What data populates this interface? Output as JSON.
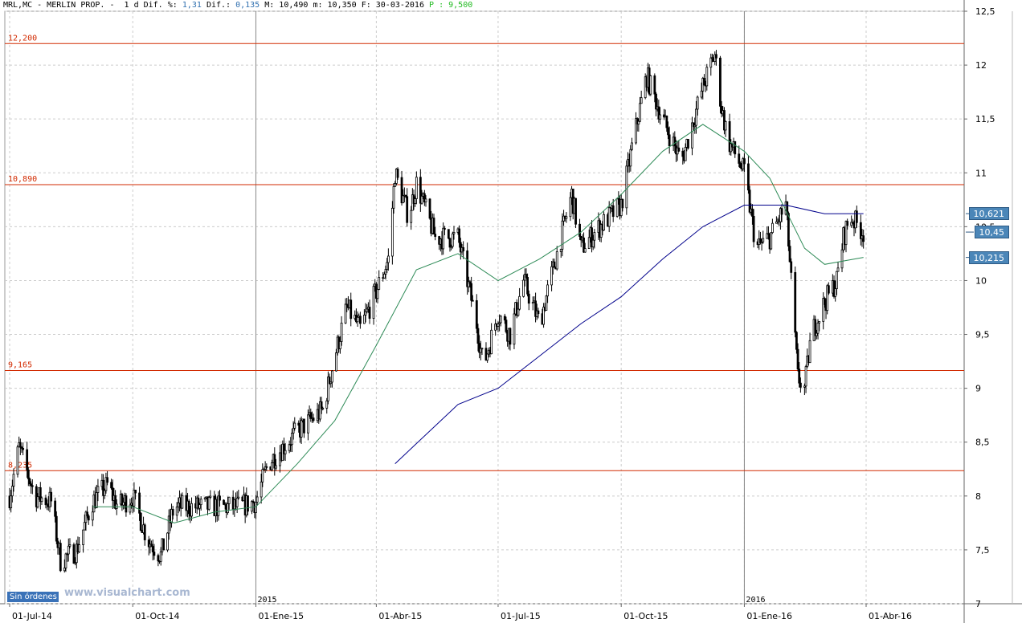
{
  "header": {
    "symbol": "MRL,MC - MERLIN PROP. -",
    "timeframe": "1 d",
    "dif_pct_label": "Dif. %:",
    "dif_pct_value": "1,31",
    "dif_label": "Dif.:",
    "dif_value": "0,135",
    "max_label": "M:",
    "max_value": "10,490",
    "min_label": "m:",
    "min_value": "10,350",
    "date_label": "F:",
    "date_value": "30-03-2016",
    "p_label": "P",
    "p_value": "9,500"
  },
  "badge": {
    "label": "Sin órdenes"
  },
  "watermark": "www.visualchart.com",
  "colors": {
    "candles": "#000000",
    "level_lines": "#d22a00",
    "ma_short": "#2e8b57",
    "ma_long": "#00008b",
    "grid": "#cccccc",
    "tag": "#4b86b8"
  },
  "chart_data": {
    "type": "line",
    "series_type": "candlestick",
    "ylim": [
      7,
      12.5
    ],
    "y_ticks": [
      "7",
      "7,5",
      "8",
      "8,5",
      "9",
      "9,5",
      "10",
      "10,5",
      "11",
      "11,5",
      "12",
      "12,5"
    ],
    "x_ticks": [
      "01-Jul-14",
      "01-Oct-14",
      "01-Ene-15",
      "01-Abr-15",
      "01-Jul-15",
      "01-Oct-15",
      "01-Ene-16",
      "01-Abr-16"
    ],
    "year_labels": [
      "2015",
      "2016"
    ],
    "level_lines": [
      {
        "label": "12,200",
        "value": 12.2
      },
      {
        "label": "10,890",
        "value": 10.89
      },
      {
        "label": "9,165",
        "value": 9.165
      },
      {
        "label": "8,235",
        "value": 8.235
      }
    ],
    "price_tags": [
      {
        "label": "10,621",
        "value": 10.621
      },
      {
        "label": "10,45",
        "value": 10.45
      },
      {
        "label": "10,215",
        "value": 10.215
      }
    ],
    "price_path": [
      [
        "01-Jul-14",
        8.0
      ],
      [
        "08-Jul-14",
        8.45
      ],
      [
        "20-Jul-14",
        8.0
      ],
      [
        "01-Aug-14",
        7.95
      ],
      [
        "08-Aug-14",
        7.4
      ],
      [
        "20-Aug-14",
        7.5
      ],
      [
        "01-Sep-14",
        7.95
      ],
      [
        "12-Sep-14",
        8.1
      ],
      [
        "20-Sep-14",
        7.9
      ],
      [
        "01-Oct-14",
        8.0
      ],
      [
        "12-Oct-14",
        7.6
      ],
      [
        "22-Oct-14",
        7.45
      ],
      [
        "01-Nov-14",
        7.9
      ],
      [
        "01-Dec-14",
        7.9
      ],
      [
        "20-Dec-14",
        7.9
      ],
      [
        "01-Ene-15",
        7.95
      ],
      [
        "10-Ene-15",
        8.3
      ],
      [
        "01-Feb-15",
        8.6
      ],
      [
        "20-Feb-15",
        8.8
      ],
      [
        "01-Mar-15",
        9.3
      ],
      [
        "10-Mar-15",
        9.75
      ],
      [
        "20-Mar-15",
        9.55
      ],
      [
        "01-Abr-15",
        9.9
      ],
      [
        "10-Abr-15",
        10.2
      ],
      [
        "15-Abr-15",
        11.0
      ],
      [
        "25-Abr-15",
        10.6
      ],
      [
        "01-May-15",
        10.9
      ],
      [
        "15-May-15",
        10.4
      ],
      [
        "01-Jun-15",
        10.4
      ],
      [
        "15-Jun-15",
        9.6
      ],
      [
        "20-Jun-15",
        9.2
      ],
      [
        "01-Jul-15",
        9.7
      ],
      [
        "10-Jul-15",
        9.5
      ],
      [
        "20-Jul-15",
        10.0
      ],
      [
        "01-Aug-15",
        9.6
      ],
      [
        "15-Aug-15",
        10.3
      ],
      [
        "25-Aug-15",
        10.8
      ],
      [
        "01-Sep-15",
        10.3
      ],
      [
        "15-Sep-15",
        10.5
      ],
      [
        "01-Oct-15",
        10.7
      ],
      [
        "10-Oct-15",
        11.3
      ],
      [
        "20-Oct-15",
        11.9
      ],
      [
        "01-Nov-15",
        11.5
      ],
      [
        "15-Nov-15",
        11.1
      ],
      [
        "01-Dec-15",
        11.8
      ],
      [
        "10-Dec-15",
        12.1
      ],
      [
        "15-Dec-15",
        11.6
      ],
      [
        "20-Dec-15",
        11.3
      ],
      [
        "01-Ene-16",
        11.0
      ],
      [
        "10-Ene-16",
        10.3
      ],
      [
        "20-Ene-16",
        10.4
      ],
      [
        "01-Feb-16",
        10.7
      ],
      [
        "10-Feb-16",
        9.1
      ],
      [
        "15-Feb-16",
        9.0
      ],
      [
        "20-Feb-16",
        9.5
      ],
      [
        "01-Mar-16",
        9.8
      ],
      [
        "10-Mar-16",
        10.0
      ],
      [
        "15-Mar-16",
        10.4
      ],
      [
        "20-Mar-16",
        10.6
      ],
      [
        "30-Mar-16",
        10.45
      ]
    ],
    "series": [
      {
        "type": "moving_average",
        "color": "#2e8b57",
        "points": [
          [
            "01-Sep-14",
            7.9
          ],
          [
            "01-Oct-14",
            7.9
          ],
          [
            "01-Nov-14",
            7.75
          ],
          [
            "01-Dec-14",
            7.85
          ],
          [
            "01-Ene-15",
            7.9
          ],
          [
            "01-Feb-15",
            8.3
          ],
          [
            "01-Mar-15",
            8.7
          ],
          [
            "01-Abr-15",
            9.4
          ],
          [
            "01-May-15",
            10.1
          ],
          [
            "01-Jun-15",
            10.25
          ],
          [
            "01-Jul-15",
            10.0
          ],
          [
            "01-Aug-15",
            10.2
          ],
          [
            "01-Sep-15",
            10.45
          ],
          [
            "01-Oct-15",
            10.8
          ],
          [
            "01-Nov-15",
            11.2
          ],
          [
            "01-Dec-15",
            11.45
          ],
          [
            "01-Ene-16",
            11.2
          ],
          [
            "20-Ene-16",
            10.95
          ],
          [
            "01-Feb-16",
            10.65
          ],
          [
            "15-Feb-16",
            10.3
          ],
          [
            "01-Mar-16",
            10.15
          ],
          [
            "30-Mar-16",
            10.215
          ]
        ]
      },
      {
        "type": "moving_average",
        "color": "#00008b",
        "points": [
          [
            "15-Abr-15",
            8.3
          ],
          [
            "01-Jun-15",
            8.85
          ],
          [
            "01-Jul-15",
            9.0
          ],
          [
            "01-Aug-15",
            9.3
          ],
          [
            "01-Sep-15",
            9.6
          ],
          [
            "01-Oct-15",
            9.85
          ],
          [
            "01-Nov-15",
            10.2
          ],
          [
            "01-Dec-15",
            10.5
          ],
          [
            "01-Ene-16",
            10.7
          ],
          [
            "01-Feb-16",
            10.7
          ],
          [
            "01-Mar-16",
            10.62
          ],
          [
            "30-Mar-16",
            10.621
          ]
        ]
      }
    ]
  }
}
